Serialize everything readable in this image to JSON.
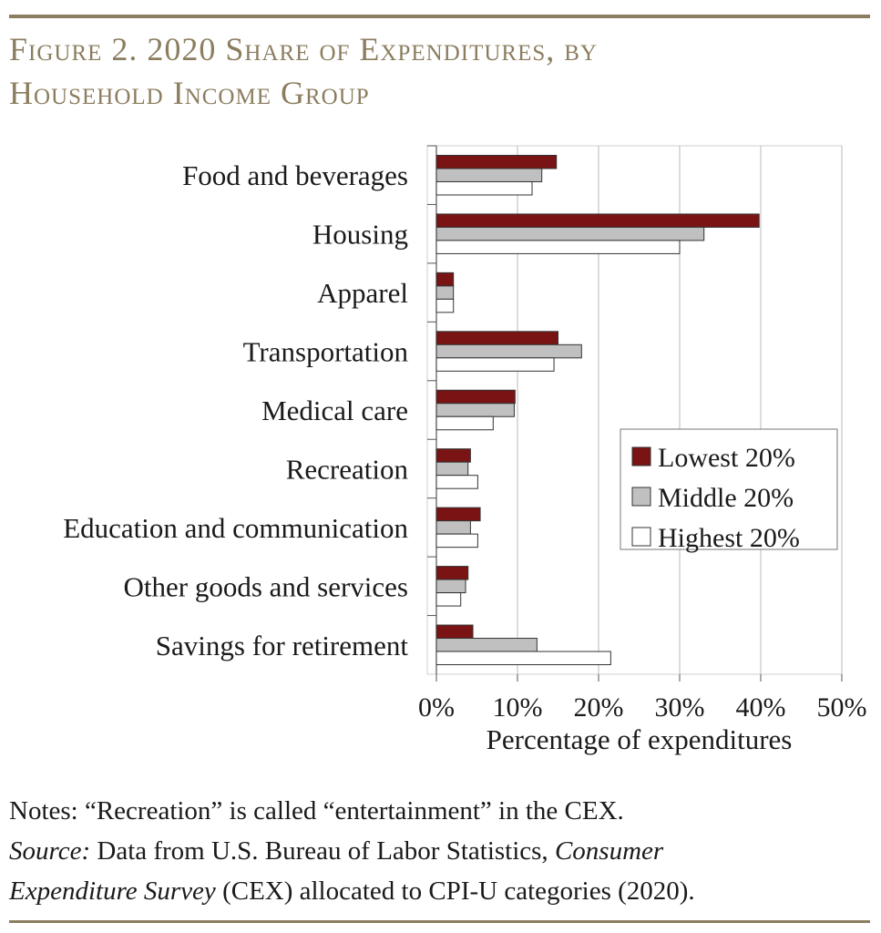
{
  "figure": {
    "title_line1": "Figure 2. 2020 Share of Expenditures, by",
    "title_line2": "Household Income Group"
  },
  "chart_data": {
    "type": "bar",
    "orientation": "horizontal",
    "categories": [
      "Food and beverages",
      "Housing",
      "Apparel",
      "Transportation",
      "Medical care",
      "Recreation",
      "Education and communication",
      "Other goods and services",
      "Savings for retirement"
    ],
    "series": [
      {
        "name": "Lowest 20%",
        "color": "#7a1414",
        "values": [
          14.8,
          39.8,
          2.1,
          15.0,
          9.7,
          4.2,
          5.4,
          3.9,
          4.5
        ]
      },
      {
        "name": "Middle 20%",
        "color": "#c0c0c0",
        "values": [
          13.0,
          33.0,
          2.1,
          17.9,
          9.6,
          3.9,
          4.2,
          3.6,
          12.4
        ]
      },
      {
        "name": "Highest 20%",
        "color": "#ffffff",
        "values": [
          11.8,
          30.0,
          2.1,
          14.5,
          7.0,
          5.1,
          5.1,
          3.0,
          21.5
        ]
      }
    ],
    "xlim": [
      0,
      50
    ],
    "xticks": [
      "0%",
      "10%",
      "20%",
      "30%",
      "40%",
      "50%"
    ],
    "xlabel": "Percentage of expenditures",
    "grid": true,
    "legend_position": "right-center"
  },
  "notes": {
    "line1": "Notes: “Recreation” is called “entertainment” in the CEX.",
    "source_label": "Source:",
    "source_text1": " Data from U.S. Bureau of Labor Statistics, ",
    "source_title1": "Consumer",
    "source_title2": "Expenditure Survey",
    "source_text2": " (CEX) allocated to CPI-U categories (2020)."
  }
}
